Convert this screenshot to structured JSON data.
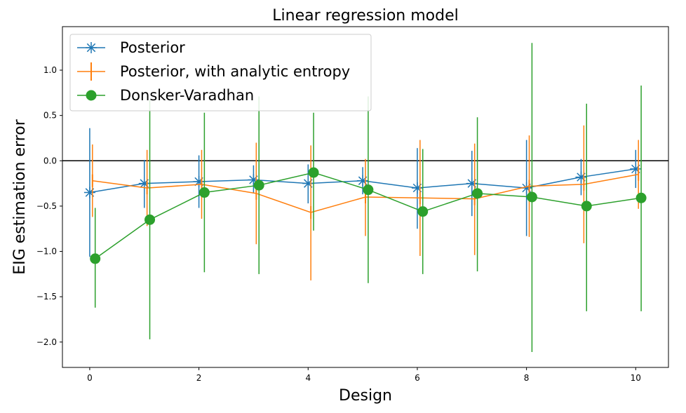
{
  "chart_data": {
    "type": "line",
    "title": "Linear regression model",
    "xlabel": "Design",
    "ylabel": "EIG estimation error",
    "xlim": [
      -0.5,
      10.6
    ],
    "ylim": [
      -2.28,
      1.48
    ],
    "xticks": [
      0,
      2,
      4,
      6,
      8,
      10
    ],
    "xtick_labels": [
      "0",
      "2",
      "4",
      "6",
      "8",
      "10"
    ],
    "yticks": [
      -2.0,
      -1.5,
      -1.0,
      -0.5,
      0.0,
      0.5,
      1.0
    ],
    "ytick_labels": [
      "−2.0",
      "−1.5",
      "−1.0",
      "−0.5",
      "0.0",
      "0.5",
      "1.0"
    ],
    "grid": false,
    "legend_position": "upper-left",
    "reference_line": {
      "y": 0.0,
      "color": "#000000"
    },
    "series": [
      {
        "name": "Posterior",
        "color": "#1f77b4",
        "marker": "star-cross",
        "x": [
          0,
          1,
          2,
          3,
          4,
          5,
          6,
          7,
          8,
          9,
          10
        ],
        "y": [
          -0.35,
          -0.25,
          -0.23,
          -0.21,
          -0.25,
          -0.22,
          -0.3,
          -0.25,
          -0.3,
          -0.18,
          -0.09
        ],
        "err_low": [
          -1.06,
          -0.52,
          -0.52,
          -0.36,
          -0.47,
          -0.37,
          -0.75,
          -0.61,
          -0.83,
          -0.38,
          -0.3
        ],
        "err_high": [
          0.36,
          0.01,
          0.06,
          -0.05,
          -0.04,
          -0.07,
          0.14,
          0.11,
          0.23,
          0.02,
          0.12
        ]
      },
      {
        "name": "Posterior, with analytic entropy",
        "color": "#ff7f0e",
        "marker": "vline",
        "x": [
          0.05,
          1.05,
          2.05,
          3.05,
          4.05,
          5.05,
          6.05,
          7.05,
          8.05,
          9.05,
          10.05
        ],
        "y": [
          -0.22,
          -0.3,
          -0.26,
          -0.36,
          -0.57,
          -0.4,
          -0.41,
          -0.42,
          -0.28,
          -0.26,
          -0.15
        ],
        "err_low": [
          -0.62,
          -0.72,
          -0.64,
          -0.92,
          -1.32,
          -0.83,
          -1.05,
          -1.04,
          -0.84,
          -0.91,
          -0.53
        ],
        "err_high": [
          0.18,
          0.12,
          0.12,
          0.2,
          0.17,
          0.02,
          0.23,
          0.19,
          0.28,
          0.39,
          0.23
        ]
      },
      {
        "name": "Donsker-Varadhan",
        "color": "#2ca02c",
        "marker": "circle",
        "x": [
          0.1,
          1.1,
          2.1,
          3.1,
          4.1,
          5.1,
          6.1,
          7.1,
          8.1,
          9.1,
          10.1
        ],
        "y": [
          -1.08,
          -0.65,
          -0.35,
          -0.27,
          -0.13,
          -0.32,
          -0.56,
          -0.36,
          -0.4,
          -0.5,
          -0.41
        ],
        "err_low": [
          -1.62,
          -1.97,
          -1.23,
          -1.25,
          -0.77,
          -1.35,
          -1.25,
          -1.22,
          -2.11,
          -1.66,
          -1.66
        ],
        "err_high": [
          -0.52,
          0.67,
          0.53,
          0.71,
          0.53,
          0.71,
          0.13,
          0.48,
          1.3,
          0.63,
          0.83
        ]
      }
    ]
  }
}
